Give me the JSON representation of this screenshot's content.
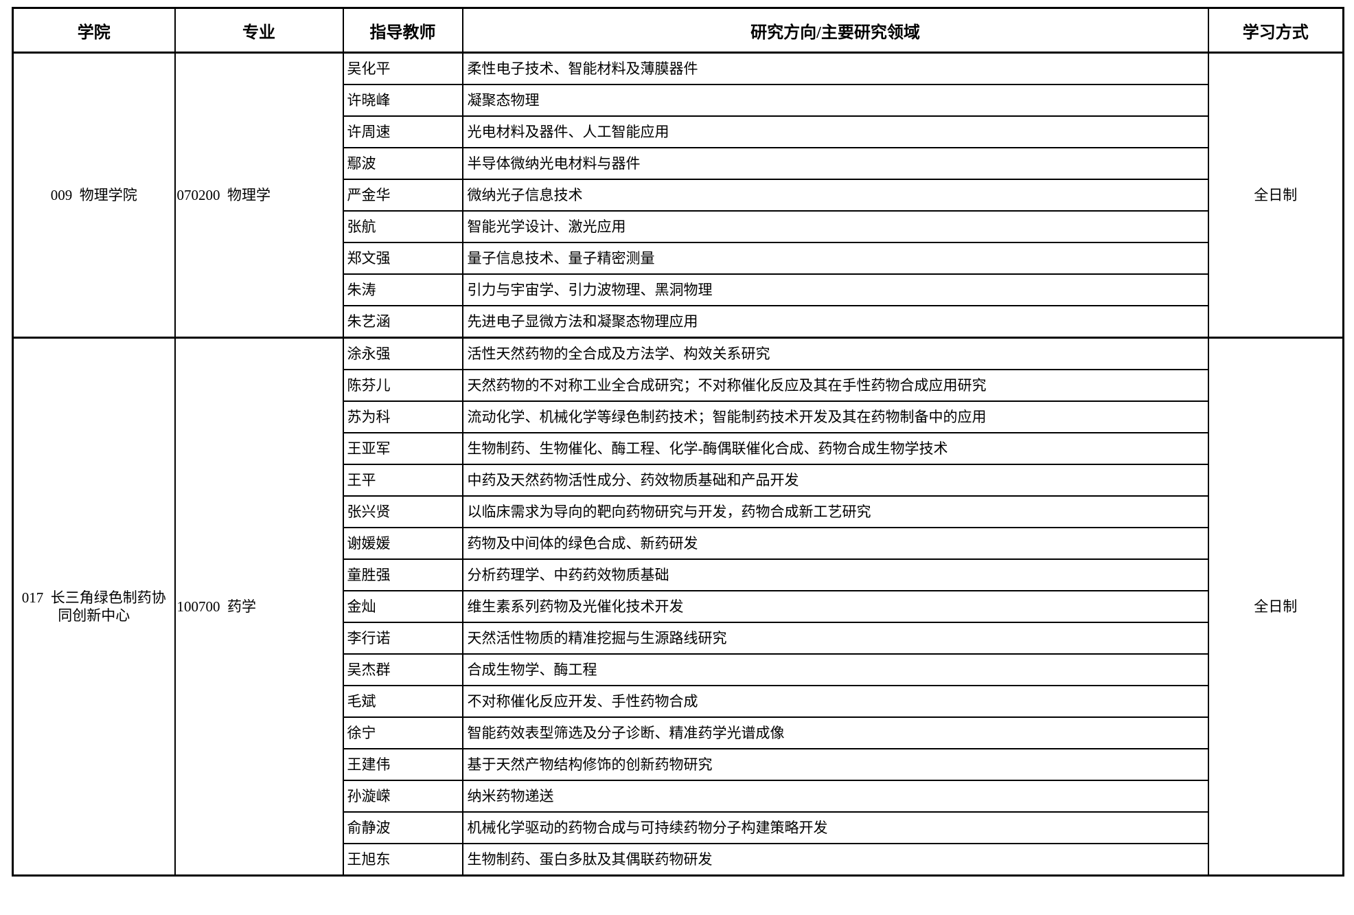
{
  "header": {
    "college": "学院",
    "major": "专业",
    "advisor": "指导教师",
    "research": "研究方向/主要研究领域",
    "study_mode": "学习方式"
  },
  "colors": {
    "border": "#000000",
    "text": "#000000",
    "background": "#ffffff"
  },
  "groups": [
    {
      "college": "009  物理学院",
      "major": "070200  物理学",
      "study_mode": "全日制",
      "rows": [
        {
          "advisor": "吴化平",
          "research": "柔性电子技术、智能材料及薄膜器件"
        },
        {
          "advisor": "许晓峰",
          "research": "凝聚态物理"
        },
        {
          "advisor": "许周速",
          "research": "光电材料及器件、人工智能应用"
        },
        {
          "advisor": "鄢波",
          "research": "半导体微纳光电材料与器件"
        },
        {
          "advisor": "严金华",
          "research": "微纳光子信息技术"
        },
        {
          "advisor": "张航",
          "research": "智能光学设计、激光应用"
        },
        {
          "advisor": "郑文强",
          "research": "量子信息技术、量子精密测量"
        },
        {
          "advisor": "朱涛",
          "research": "引力与宇宙学、引力波物理、黑洞物理"
        },
        {
          "advisor": "朱艺涵",
          "research": "先进电子显微方法和凝聚态物理应用"
        }
      ]
    },
    {
      "college": "017  长三角绿色制药协同创新中心",
      "major": "100700  药学",
      "study_mode": "全日制",
      "rows": [
        {
          "advisor": "涂永强",
          "research": "活性天然药物的全合成及方法学、构效关系研究"
        },
        {
          "advisor": "陈芬儿",
          "research": "天然药物的不对称工业全合成研究；不对称催化反应及其在手性药物合成应用研究"
        },
        {
          "advisor": "苏为科",
          "research": "流动化学、机械化学等绿色制药技术；智能制药技术开发及其在药物制备中的应用"
        },
        {
          "advisor": "王亚军",
          "research": "生物制药、生物催化、酶工程、化学-酶偶联催化合成、药物合成生物学技术"
        },
        {
          "advisor": "王平",
          "research": "中药及天然药物活性成分、药效物质基础和产品开发"
        },
        {
          "advisor": "张兴贤",
          "research": "以临床需求为导向的靶向药物研究与开发，药物合成新工艺研究"
        },
        {
          "advisor": "谢媛媛",
          "research": "药物及中间体的绿色合成、新药研发"
        },
        {
          "advisor": "童胜强",
          "research": "分析药理学、中药药效物质基础"
        },
        {
          "advisor": "金灿",
          "research": "维生素系列药物及光催化技术开发"
        },
        {
          "advisor": "李行诺",
          "research": "天然活性物质的精准挖掘与生源路线研究"
        },
        {
          "advisor": "吴杰群",
          "research": "合成生物学、酶工程"
        },
        {
          "advisor": "毛斌",
          "research": "不对称催化反应开发、手性药物合成"
        },
        {
          "advisor": "徐宁",
          "research": "智能药效表型筛选及分子诊断、精准药学光谱成像"
        },
        {
          "advisor": "王建伟",
          "research": "基于天然产物结构修饰的创新药物研究"
        },
        {
          "advisor": "孙漩嵘",
          "research": "纳米药物递送"
        },
        {
          "advisor": "俞静波",
          "research": "机械化学驱动的药物合成与可持续药物分子构建策略开发"
        },
        {
          "advisor": "王旭东",
          "research": "生物制药、蛋白多肽及其偶联药物研发"
        }
      ]
    }
  ]
}
